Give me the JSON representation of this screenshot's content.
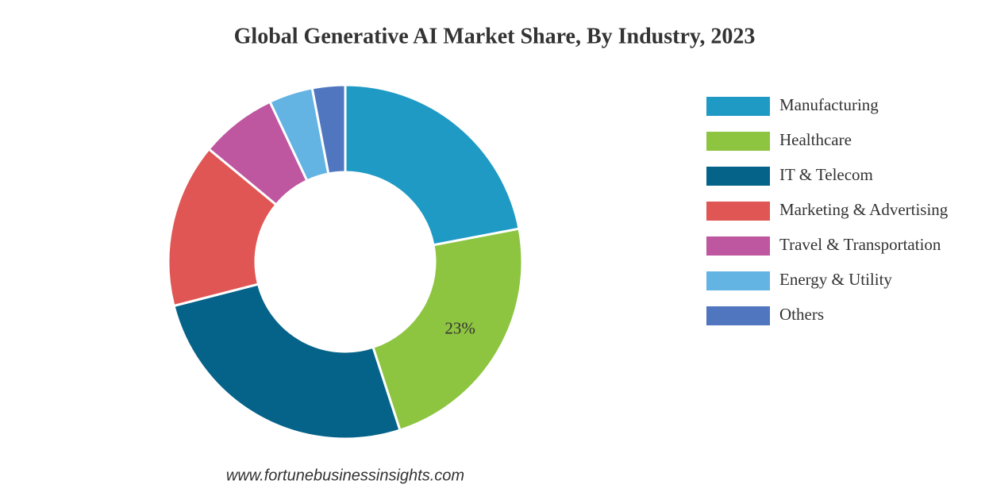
{
  "chart_data": {
    "type": "donut",
    "title": "Global Generative AI Market Share, By Industry, 2023",
    "categories": [
      "Manufacturing",
      "Healthcare",
      "IT & Telecom",
      "Marketing & Advertising",
      "Travel & Transportation",
      "Energy & Utility",
      "Others"
    ],
    "values": [
      22,
      23,
      26,
      15,
      7,
      4,
      3
    ],
    "value_labels": [
      null,
      "23%",
      null,
      null,
      null,
      null,
      null
    ],
    "colors": [
      "#1e9ac4",
      "#8dc540",
      "#056389",
      "#e05654",
      "#bf56a0",
      "#63b3e3",
      "#4f76bf"
    ],
    "legend": "right",
    "source": "www.fortunebusinessinsights.com"
  }
}
